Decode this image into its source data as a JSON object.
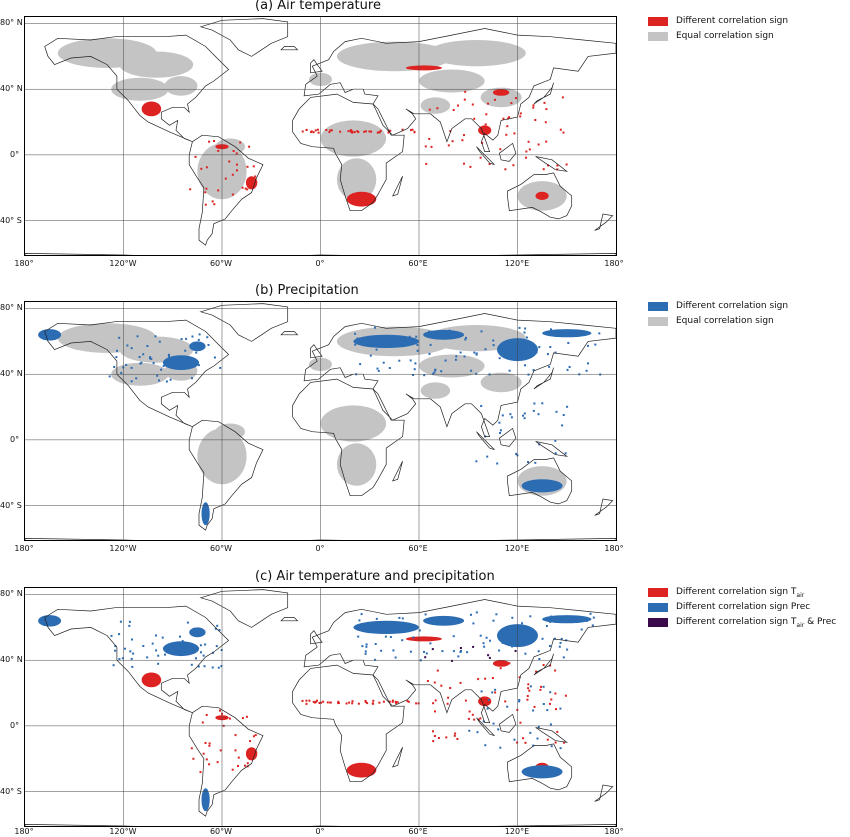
{
  "colors": {
    "red": "#dd2222",
    "blue": "#2b6cb3",
    "gray": "#c4c4c4",
    "purple": "#3a0a4a"
  },
  "panels": [
    {
      "title": "(a)  Air temperature",
      "legend": [
        {
          "label": "Different correlation sign",
          "color": "#dd2222"
        },
        {
          "label": "Equal correlation sign",
          "color": "#c4c4c4"
        }
      ]
    },
    {
      "title": "(b)     Precipitation",
      "legend": [
        {
          "label": "Different correlation sign",
          "color": "#2b6cb3"
        },
        {
          "label": "Equal correlation sign",
          "color": "#c4c4c4"
        }
      ]
    },
    {
      "title": "(c)   Air temperature and precipitation",
      "legend": [
        {
          "label": "Different correlation sign T",
          "sub": "air",
          "color": "#dd2222"
        },
        {
          "label": "Different correlation sign Prec",
          "color": "#2b6cb3"
        },
        {
          "label": "Different correlation sign T",
          "sub": "air",
          "suffix": " & Prec",
          "color": "#3a0a4a"
        }
      ]
    }
  ],
  "lat_labels": [
    "80° N",
    "40° N",
    "0°",
    "40° S"
  ],
  "lon_labels": [
    "180°",
    "120°W",
    "60°W",
    "0°",
    "60°E",
    "120°E",
    "180°"
  ]
}
